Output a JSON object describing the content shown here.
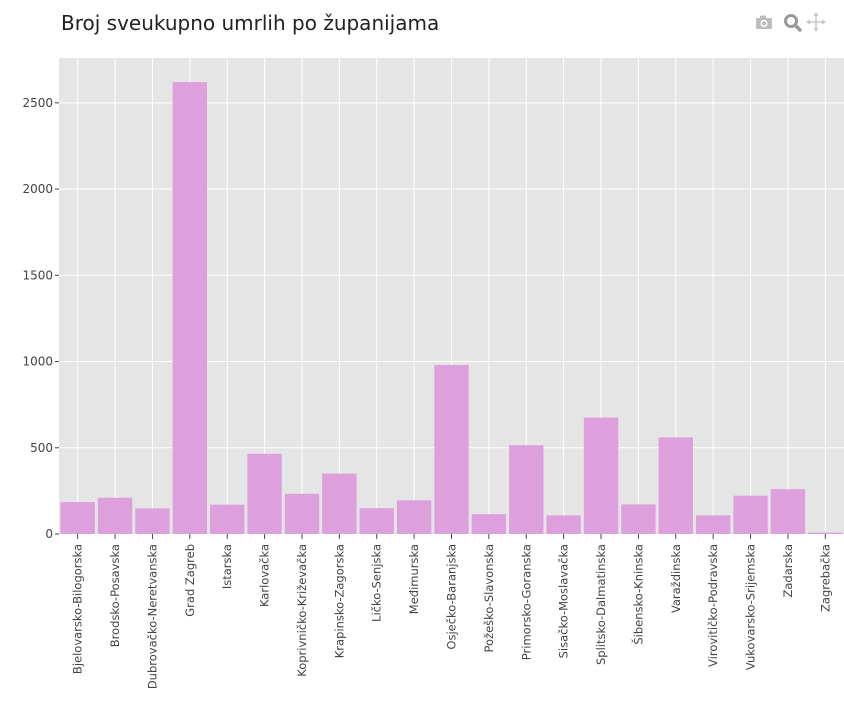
{
  "chart_data": {
    "type": "bar",
    "title": "Broj sveukupno umrlih po županijama",
    "xlabel": "",
    "ylabel": "",
    "ylim": [
      0,
      2760
    ],
    "yticks": [
      0,
      500,
      1000,
      1500,
      2000,
      2500
    ],
    "grid": true,
    "bar_color": "#dda0dd",
    "categories": [
      "Bjelovarsko-Bilogorska",
      "Brodsko-Posavska",
      "Dubrovačko-Neretvanska",
      "Grad Zagreb",
      "Istarska",
      "Karlovačka",
      "Koprivničko-Križevačka",
      "Krapinsko-Zagorska",
      "Ličko-Senjska",
      "Međimurska",
      "Osječko-Baranjska",
      "Požeško-Slavonska",
      "Primorsko-Goranska",
      "Sisačko-Moslavačka",
      "Splitsko-Dalmatinska",
      "Šibensko-Kninska",
      "Varaždinska",
      "Virovitičko-Podravska",
      "Vukovarsko-Srijemska",
      "Zadarska",
      "Zagrebačka"
    ],
    "values": [
      185,
      210,
      148,
      2620,
      170,
      465,
      233,
      350,
      150,
      195,
      980,
      115,
      515,
      108,
      675,
      172,
      560,
      108,
      222,
      260,
      8
    ]
  },
  "modebar": {
    "icons": [
      "camera-icon",
      "zoom-icon",
      "pan-icon"
    ],
    "color": "#b8b8b8"
  }
}
